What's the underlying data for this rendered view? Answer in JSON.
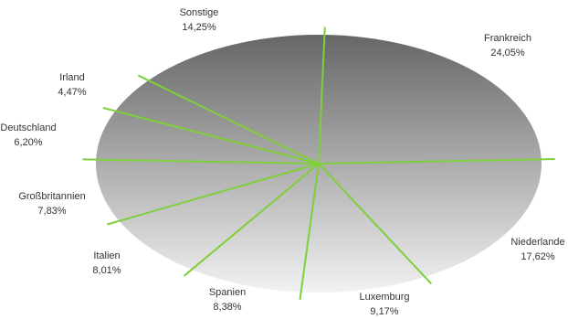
{
  "chart_data": {
    "type": "pie",
    "title": "",
    "slices": [
      {
        "name": "Frankreich",
        "value_label": "24,05%",
        "value": 24.05
      },
      {
        "name": "Niederlande",
        "value_label": "17,62%",
        "value": 17.62
      },
      {
        "name": "Luxemburg",
        "value_label": "9,17%",
        "value": 9.17
      },
      {
        "name": "Spanien",
        "value_label": "8,38%",
        "value": 8.38
      },
      {
        "name": "Italien",
        "value_label": "8,01%",
        "value": 8.01
      },
      {
        "name": "Großbritannien",
        "value_label": "7,83%",
        "value": 7.83
      },
      {
        "name": "Deutschland",
        "value_label": "6,20%",
        "value": 6.2
      },
      {
        "name": "Irland",
        "value_label": "4,47%",
        "value": 4.47
      },
      {
        "name": "Sonstige",
        "value_label": "14,25%",
        "value": 14.25
      }
    ],
    "colors": {
      "gradient_top": "#666666",
      "gradient_bottom": "#f2f2f2",
      "divider": "#7ed03a",
      "label": "#333333"
    },
    "legend": "none",
    "labels_outside": true
  }
}
